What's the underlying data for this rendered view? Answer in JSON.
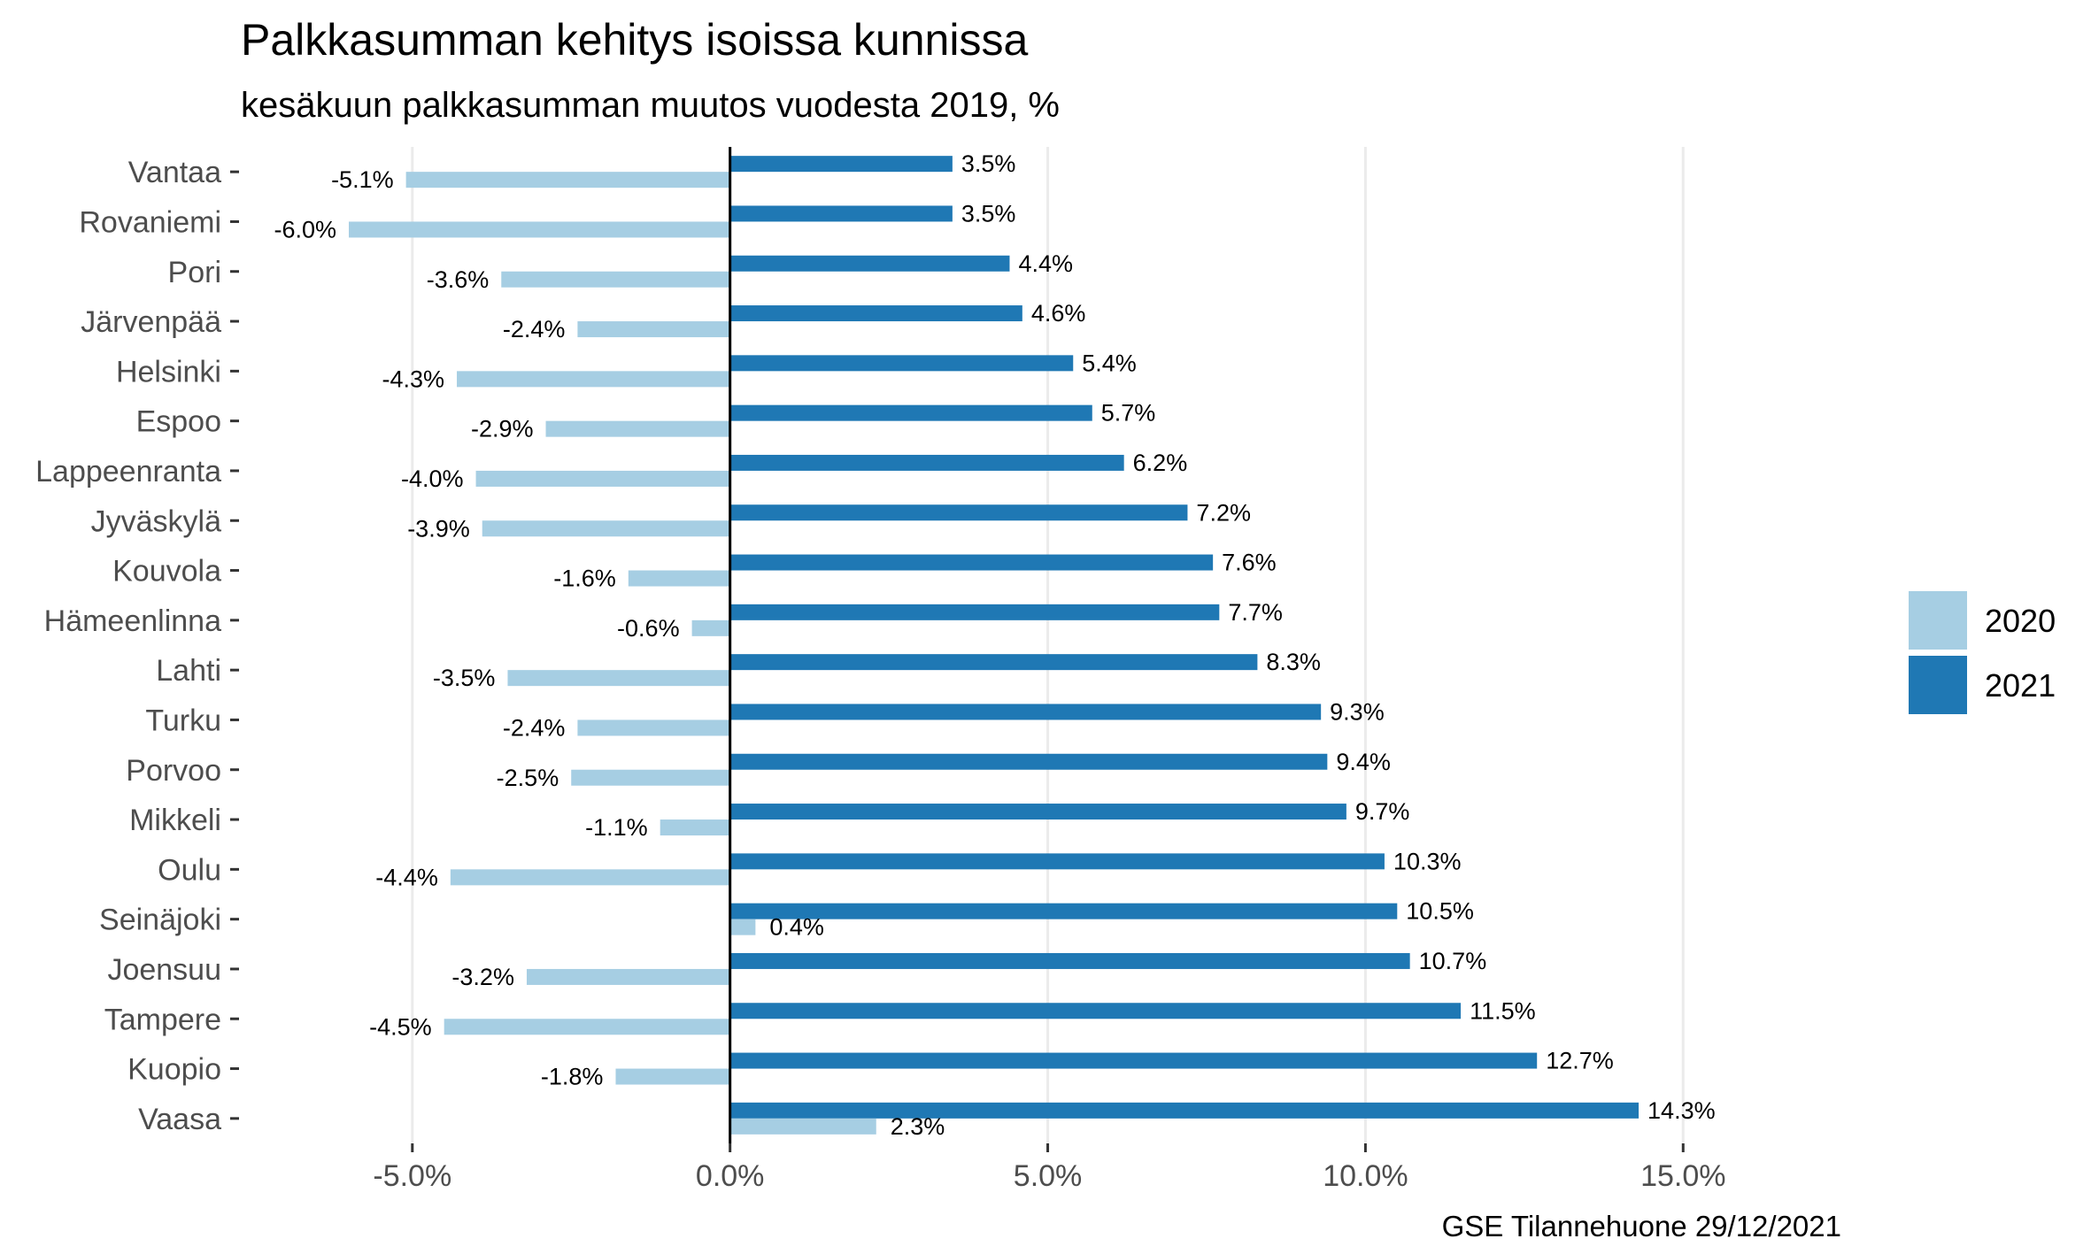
{
  "chart_data": {
    "type": "bar",
    "orientation": "horizontal",
    "title": "Palkkasumman kehitys isoissa kunnissa",
    "subtitle": "kesäkuun palkkasumman muutos vuodesta 2019, %",
    "caption": "GSE Tilannehuone 29/12/2021",
    "categories": [
      "Vantaa",
      "Rovaniemi",
      "Pori",
      "Järvenpää",
      "Helsinki",
      "Espoo",
      "Lappeenranta",
      "Jyväskylä",
      "Kouvola",
      "Hämeenlinna",
      "Lahti",
      "Turku",
      "Porvoo",
      "Mikkeli",
      "Oulu",
      "Seinäjoki",
      "Joensuu",
      "Tampere",
      "Kuopio",
      "Vaasa"
    ],
    "series": [
      {
        "name": "2020",
        "color": "#a6cee3",
        "values": [
          -5.1,
          -6.0,
          -3.6,
          -2.4,
          -4.3,
          -2.9,
          -4.0,
          -3.9,
          -1.6,
          -0.6,
          -3.5,
          -2.4,
          -2.5,
          -1.1,
          -4.4,
          0.4,
          -3.2,
          -4.5,
          -1.8,
          2.3
        ],
        "labels": [
          "-5.1%",
          "-6.0%",
          "-3.6%",
          "-2.4%",
          "-4.3%",
          "-2.9%",
          "-4.0%",
          "-3.9%",
          "-1.6%",
          "-0.6%",
          "-3.5%",
          "-2.4%",
          "-2.5%",
          "-1.1%",
          "-4.4%",
          "0.4%",
          "-3.2%",
          "-4.5%",
          "-1.8%",
          "2.3%"
        ]
      },
      {
        "name": "2021",
        "color": "#1f78b4",
        "values": [
          3.5,
          3.5,
          4.4,
          4.6,
          5.4,
          5.7,
          6.2,
          7.2,
          7.6,
          7.7,
          8.3,
          9.3,
          9.4,
          9.7,
          10.3,
          10.5,
          10.7,
          11.5,
          12.7,
          14.3
        ],
        "labels": [
          "3.5%",
          "3.5%",
          "4.4%",
          "4.6%",
          "5.4%",
          "5.7%",
          "6.2%",
          "7.2%",
          "7.6%",
          "7.7%",
          "8.3%",
          "9.3%",
          "9.4%",
          "9.7%",
          "10.3%",
          "10.5%",
          "10.7%",
          "11.5%",
          "12.7%",
          "14.3%"
        ]
      }
    ],
    "x_ticks": [
      -5,
      0,
      5,
      10,
      15
    ],
    "x_tick_labels": [
      "-5.0%",
      "0.0%",
      "5.0%",
      "10.0%",
      "15.0%"
    ],
    "xlim": [
      -7.7,
      17.1
    ],
    "grid": "vertical",
    "zero_line": true,
    "legend_position": "right"
  }
}
